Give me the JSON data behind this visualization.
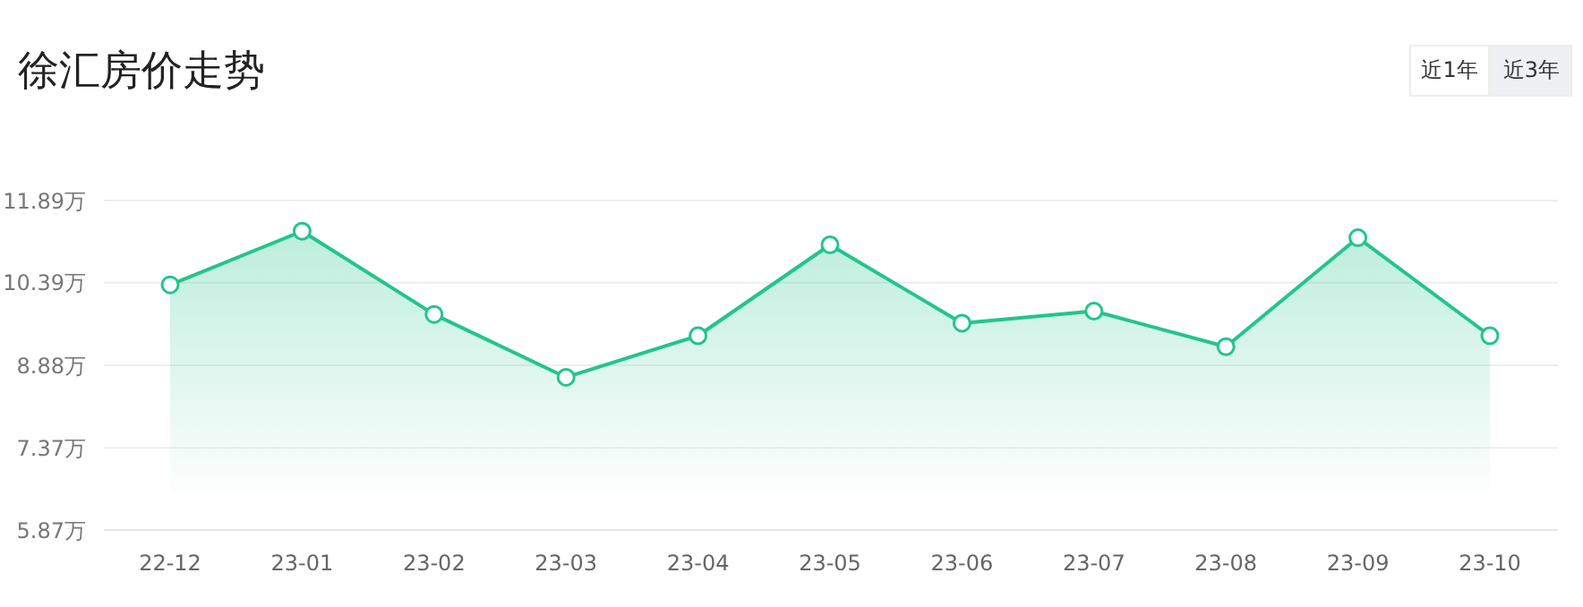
{
  "chart_data": {
    "type": "area",
    "title": "徐汇房价走势",
    "categories": [
      "22-12",
      "23-01",
      "23-02",
      "23-03",
      "23-04",
      "23-05",
      "23-06",
      "23-07",
      "23-08",
      "23-09",
      "23-10"
    ],
    "series": [
      {
        "color": "#22c58b",
        "values": [
          10.35,
          11.33,
          9.81,
          8.66,
          9.42,
          11.08,
          9.65,
          9.87,
          9.22,
          11.21,
          9.42
        ]
      }
    ],
    "ylim": [
      5.87,
      11.89
    ],
    "yticks": [
      {
        "value": 5.87,
        "label": "5.87万"
      },
      {
        "value": 7.37,
        "label": "7.37万"
      },
      {
        "value": 8.88,
        "label": "8.88万"
      },
      {
        "value": 10.39,
        "label": "10.39万"
      },
      {
        "value": 11.89,
        "label": "11.89万"
      }
    ],
    "grid": "y",
    "marker": "circle",
    "line_style": "solid",
    "legend": false,
    "annotations": [
      "近1年",
      "近3年"
    ]
  }
}
